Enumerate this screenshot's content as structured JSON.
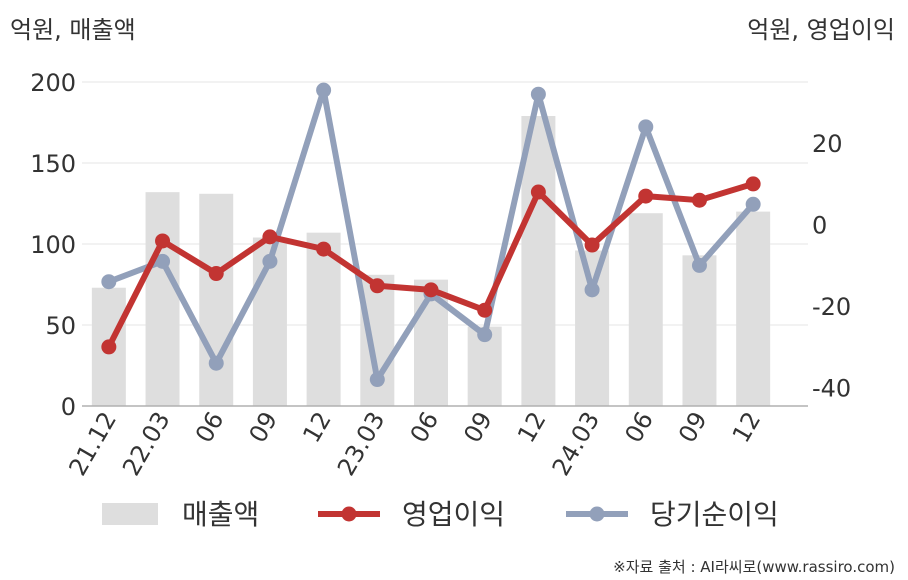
{
  "chart_data": {
    "type": "bar+line",
    "left_axis_label": "억원, 매출액",
    "right_axis_label": "억원, 영업이익",
    "categories": [
      "21.12",
      "22.03",
      "06",
      "09",
      "12",
      "23.03",
      "06",
      "09",
      "12",
      "24.03",
      "06",
      "09",
      "12"
    ],
    "left_ticks": [
      "0",
      "50",
      "100",
      "150",
      "200"
    ],
    "right_ticks": [
      "-40",
      "-20",
      "0",
      "20"
    ],
    "left_ylim": [
      0,
      200
    ],
    "right_ylim": [
      -44.5,
      35
    ],
    "series": [
      {
        "name": "매출액",
        "kind": "bar",
        "axis": "left",
        "color": "#dedede",
        "values": [
          73,
          132,
          131,
          104,
          107,
          81,
          78,
          49,
          179,
          96,
          119,
          93,
          120
        ]
      },
      {
        "name": "영업이익",
        "kind": "line",
        "axis": "right",
        "color": "#c23432",
        "values": [
          -30,
          -4,
          -12,
          -3,
          -6,
          -15,
          -16,
          -21,
          8,
          -5,
          7,
          6,
          10
        ]
      },
      {
        "name": "당기순이익",
        "kind": "line",
        "axis": "right",
        "color": "#92a0ba",
        "values": [
          -14,
          -9,
          -34,
          -9,
          33,
          -38,
          -17,
          -27,
          32,
          -16,
          24,
          -10,
          5
        ]
      }
    ],
    "legend_position": "bottom",
    "grid": true
  },
  "source": "※자료 출처 : AI라씨로(www.rassiro.com)"
}
